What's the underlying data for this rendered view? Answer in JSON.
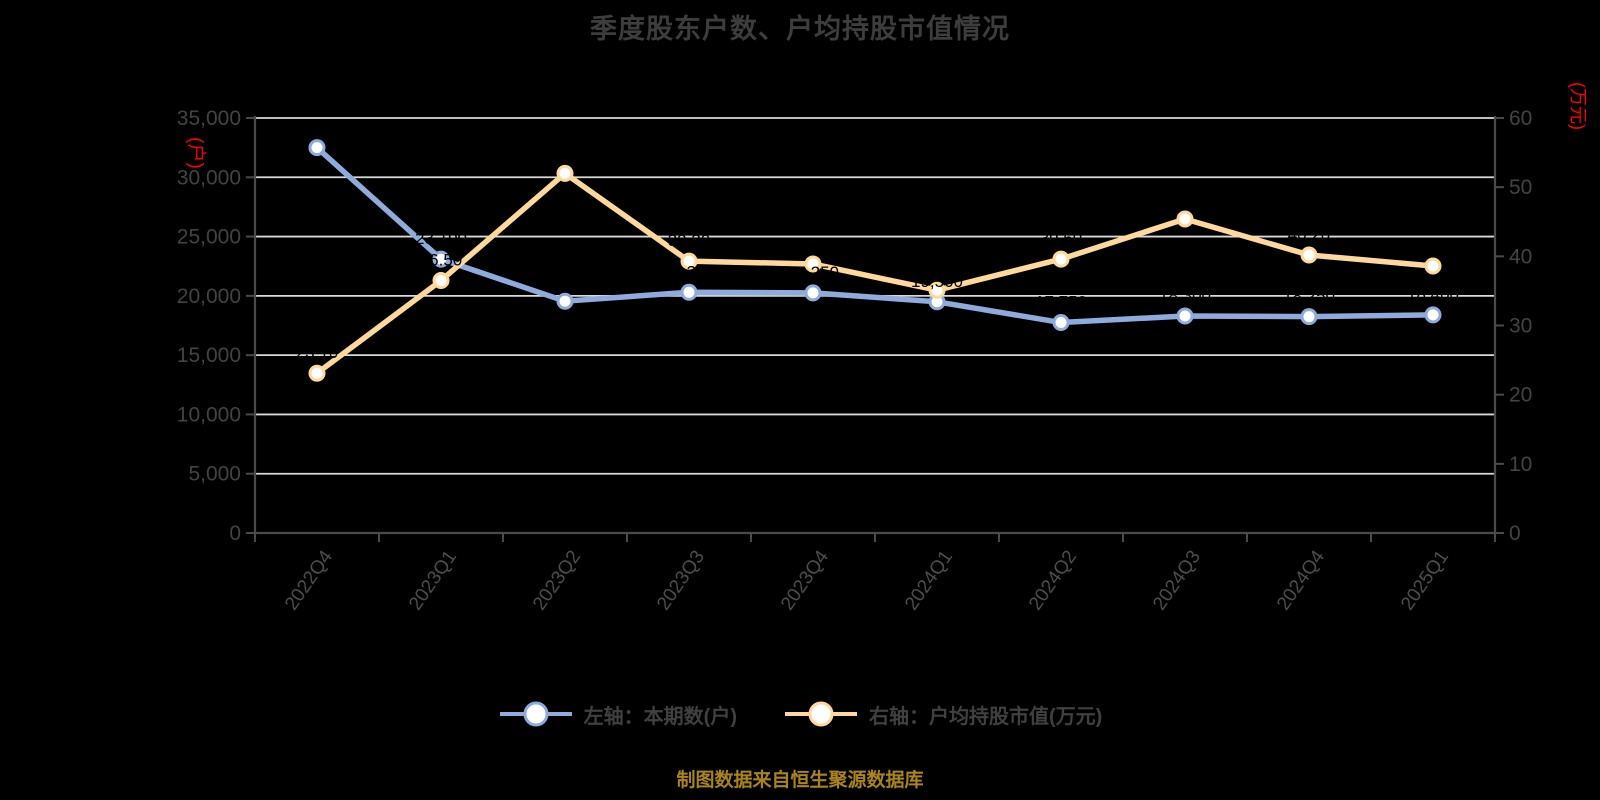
{
  "title": "季度股东户数、户均持股市值情况",
  "caption": "制图数据来自恒生聚源数据库",
  "colors": {
    "background": "#000000",
    "title": "#3D3D3D",
    "axis_line": "#4A4A4A",
    "tick_label": "#434343",
    "x_label": "#4D4D4D",
    "gridline": "#D9D9D9",
    "series_blue": "#8FAADC",
    "series_yellow": "#FFD99B",
    "marker_fill": "#FFFFFF",
    "unit_label_red": "#FF0000",
    "caption_gold": "#A8841F",
    "legend_text": "#404040",
    "data_label": "#000000"
  },
  "left_axis": {
    "unit": "(户)",
    "min": 0,
    "max": 35000,
    "step": 5000,
    "tick_labels": [
      "0",
      "5,000",
      "10,000",
      "15,000",
      "20,000",
      "25,000",
      "30,000",
      "35,000"
    ]
  },
  "right_axis": {
    "unit": "(万元)",
    "min": 0,
    "max": 60,
    "step": 10,
    "tick_labels": [
      "0",
      "10",
      "20",
      "30",
      "40",
      "50",
      "60"
    ]
  },
  "legend": [
    {
      "label": "左轴：本期数(户)",
      "color": "#8FAADC"
    },
    {
      "label": "右轴：户均持股市值(万元)",
      "color": "#FFD99B"
    }
  ],
  "chart_data": {
    "type": "line",
    "title": "季度股东户数、户均持股市值情况",
    "categories": [
      "2022Q4",
      "2023Q1",
      "2023Q2",
      "2023Q3",
      "2023Q4",
      "2024Q1",
      "2024Q2",
      "2024Q3",
      "2024Q4",
      "2025Q1"
    ],
    "series": [
      {
        "name": "左轴：本期数(户)",
        "axis": "left",
        "color": "#8FAADC",
        "values": [
          32500,
          23100,
          19550,
          20300,
          20250,
          19500,
          17750,
          18300,
          18250,
          18400
        ],
        "labels": [
          "32,500",
          "23,100",
          "19,550",
          "20,300",
          "20,250",
          "19,500",
          "17,750",
          "18,300",
          "18,250",
          "18,400"
        ]
      },
      {
        "name": "右轴：户均持股市值(万元)",
        "axis": "right",
        "color": "#FFD99B",
        "values": [
          23.1,
          36.5,
          52.0,
          39.3,
          38.9,
          35.1,
          39.6,
          45.4,
          40.2,
          38.6
        ],
        "labels": [
          "23.10",
          "36.50",
          "52.00",
          "39.30",
          "38.90",
          "35.10",
          "39.60",
          "45.40",
          "40.20",
          "38.60"
        ]
      }
    ],
    "left_ylim": [
      0,
      35000
    ],
    "right_ylim": [
      0,
      60
    ],
    "ylabel_left": "(户)",
    "ylabel_right": "(万元)",
    "grid": true,
    "legend_position": "bottom",
    "data_label_color": "#000000"
  }
}
